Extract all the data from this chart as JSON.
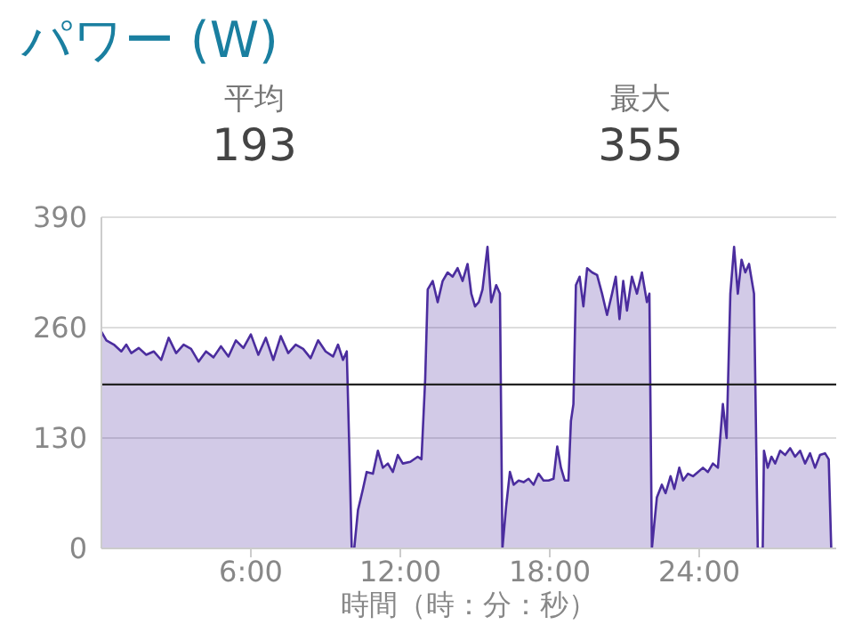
{
  "chart_data": {
    "type": "area",
    "title": "パワー (W)",
    "xlabel": "時間（時：分：秒）",
    "annotations": [
      "平均",
      "193",
      "最大",
      "355"
    ],
    "x": [
      0,
      0.2,
      0.5,
      0.8,
      1.0,
      1.2,
      1.5,
      1.8,
      2.1,
      2.4,
      2.7,
      3.0,
      3.3,
      3.6,
      3.9,
      4.2,
      4.5,
      4.8,
      5.1,
      5.4,
      5.7,
      6.0,
      6.3,
      6.6,
      6.9,
      7.2,
      7.5,
      7.8,
      8.1,
      8.4,
      8.7,
      9.0,
      9.3,
      9.5,
      9.7,
      9.85,
      9.95,
      10.05,
      10.15,
      10.3,
      10.5,
      10.65,
      10.9,
      11.1,
      11.3,
      11.5,
      11.7,
      11.9,
      12.1,
      12.4,
      12.7,
      12.85,
      13.0,
      13.1,
      13.3,
      13.5,
      13.7,
      13.9,
      14.1,
      14.3,
      14.5,
      14.7,
      14.85,
      15.0,
      15.15,
      15.3,
      15.5,
      15.65,
      15.85,
      16.0,
      16.1,
      16.25,
      16.4,
      16.55,
      16.75,
      16.95,
      17.15,
      17.35,
      17.55,
      17.75,
      17.95,
      18.15,
      18.3,
      18.45,
      18.6,
      18.75,
      18.85,
      18.95,
      19.05,
      19.2,
      19.35,
      19.5,
      19.7,
      19.9,
      20.1,
      20.3,
      20.5,
      20.65,
      20.8,
      20.95,
      21.1,
      21.3,
      21.5,
      21.7,
      21.9,
      22.0,
      22.1,
      22.3,
      22.5,
      22.65,
      22.85,
      23.0,
      23.2,
      23.35,
      23.55,
      23.75,
      23.95,
      24.15,
      24.35,
      24.55,
      24.75,
      24.95,
      25.1,
      25.25,
      25.4,
      25.55,
      25.7,
      25.85,
      26.0,
      26.2,
      26.35,
      26.55,
      26.6,
      26.75,
      26.9,
      27.05,
      27.25,
      27.45,
      27.65,
      27.85,
      28.05,
      28.25,
      28.45,
      28.65,
      28.85,
      29.05,
      29.2,
      29.3
    ],
    "series": [
      {
        "color": "#4b2d9e",
        "values": [
          255,
          245,
          240,
          232,
          240,
          230,
          236,
          228,
          232,
          222,
          248,
          230,
          240,
          235,
          220,
          232,
          225,
          238,
          226,
          245,
          236,
          252,
          228,
          248,
          222,
          250,
          230,
          240,
          235,
          224,
          245,
          232,
          226,
          240,
          222,
          232,
          120,
          0,
          0,
          45,
          70,
          90,
          88,
          115,
          95,
          100,
          90,
          110,
          100,
          102,
          108,
          105,
          200,
          305,
          315,
          290,
          315,
          325,
          320,
          330,
          315,
          335,
          300,
          285,
          290,
          305,
          355,
          290,
          310,
          300,
          0,
          50,
          90,
          75,
          80,
          78,
          82,
          75,
          88,
          80,
          80,
          82,
          120,
          95,
          80,
          80,
          150,
          170,
          310,
          320,
          285,
          330,
          325,
          322,
          300,
          275,
          300,
          320,
          270,
          315,
          280,
          320,
          300,
          325,
          290,
          300,
          0,
          60,
          75,
          65,
          85,
          70,
          95,
          80,
          88,
          85,
          90,
          95,
          90,
          100,
          95,
          170,
          130,
          300,
          355,
          300,
          340,
          325,
          335,
          300,
          0,
          0,
          115,
          95,
          108,
          100,
          115,
          110,
          118,
          108,
          115,
          100,
          112,
          95,
          110,
          112,
          105,
          0
        ]
      }
    ],
    "xlim": [
      0,
      29.5
    ],
    "xticks": [
      {
        "value": 6,
        "label": "6:00"
      },
      {
        "value": 12,
        "label": "12:00"
      },
      {
        "value": 18,
        "label": "18:00"
      },
      {
        "value": 24,
        "label": "24:00"
      }
    ],
    "ylim": [
      0,
      390
    ],
    "yticks": [
      0,
      130,
      260,
      390
    ],
    "grid": "y",
    "ref_lines": [
      {
        "axis": "y",
        "value": 193,
        "label": null,
        "color": "#222222"
      }
    ]
  }
}
